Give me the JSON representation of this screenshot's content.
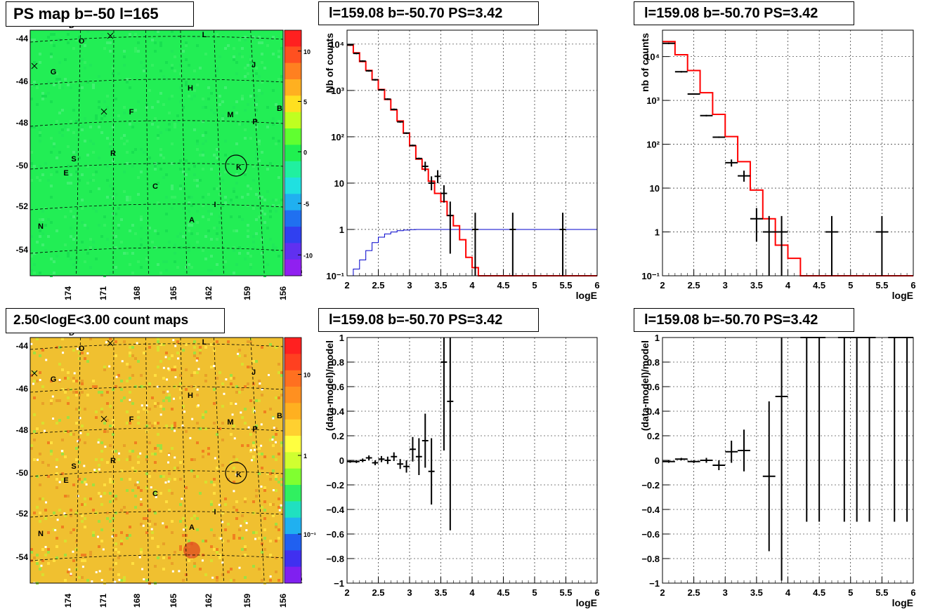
{
  "titles": {
    "map_top": "PS map b=-50 l=165",
    "map_bottom": "2.50<logE<3.00 count maps",
    "spec1": "l=159.08 b=-50.70 PS=3.42",
    "spec2": "l=159.08 b=-50.70 PS=3.42",
    "res1": "l=159.08 b=-50.70 PS=3.42",
    "res2": "l=159.08 b=-50.70 PS=3.42"
  },
  "maps": {
    "lat_ticks": [
      "-44",
      "-46",
      "-48",
      "-50",
      "-52",
      "-54"
    ],
    "lon_ticks": [
      "174",
      "171",
      "168",
      "165",
      "162",
      "159",
      "156"
    ],
    "source_labels": [
      {
        "t": "Q"
      },
      {
        "t": "D"
      },
      {
        "t": "O"
      },
      {
        "t": "L"
      },
      {
        "t": "G"
      },
      {
        "t": "J"
      },
      {
        "t": "H"
      },
      {
        "t": "F"
      },
      {
        "t": "M"
      },
      {
        "t": "B"
      },
      {
        "t": "P"
      },
      {
        "t": "R"
      },
      {
        "t": "S"
      },
      {
        "t": "K"
      },
      {
        "t": "E"
      },
      {
        "t": "C"
      },
      {
        "t": "I"
      },
      {
        "t": "A"
      },
      {
        "t": "N"
      }
    ],
    "top_colorbar_ticks": [
      "10",
      "5",
      "0",
      "-5",
      "-10"
    ],
    "bottom_colorbar_ticks": [
      "10",
      "1",
      "10⁻¹"
    ],
    "colors": {
      "background_top": "#22ee55",
      "background_bottom": "#f0c030"
    }
  },
  "chart_data": [
    {
      "type": "line",
      "title": "l=159.08 b=-50.70 PS=3.42",
      "xlabel": "logE",
      "ylabel": "Nb of counts",
      "xlim": [
        2,
        6
      ],
      "ylim": [
        0.1,
        20000
      ],
      "yscale": "log",
      "x_ticks": [
        "2",
        "2.5",
        "3",
        "3.5",
        "4",
        "4.5",
        "5",
        "5.5",
        "6"
      ],
      "y_ticks": [
        "10⁻¹",
        "1",
        "10",
        "10²",
        "10³",
        "10⁴"
      ],
      "grid": true,
      "model_step": {
        "edges": [
          2.0,
          2.1,
          2.2,
          2.3,
          2.4,
          2.5,
          2.6,
          2.7,
          2.8,
          2.9,
          3.0,
          3.1,
          3.2,
          3.3,
          3.4,
          3.5,
          3.6,
          3.7,
          3.8,
          3.9,
          4.0,
          4.1,
          4.2,
          6.0
        ],
        "values": [
          9500,
          6500,
          4200,
          2700,
          1700,
          1050,
          640,
          380,
          220,
          120,
          64,
          33,
          20,
          11,
          6,
          4,
          2,
          1.2,
          0.6,
          0.25,
          0.15,
          0.1,
          0.1
        ]
      },
      "exposure_step": {
        "edges": [
          2.0,
          2.1,
          2.2,
          2.3,
          2.4,
          2.5,
          2.6,
          2.7,
          2.8,
          2.9,
          3.0,
          3.1,
          6.0
        ],
        "values": [
          0.1,
          0.14,
          0.22,
          0.35,
          0.52,
          0.68,
          0.8,
          0.88,
          0.94,
          0.97,
          0.99,
          1.0
        ]
      },
      "data_points": [
        {
          "x": 2.05,
          "y": 9600
        },
        {
          "x": 2.15,
          "y": 6300
        },
        {
          "x": 2.25,
          "y": 4300
        },
        {
          "x": 2.35,
          "y": 2650
        },
        {
          "x": 2.45,
          "y": 1700
        },
        {
          "x": 2.55,
          "y": 1030
        },
        {
          "x": 2.65,
          "y": 650
        },
        {
          "x": 2.75,
          "y": 390
        },
        {
          "x": 2.85,
          "y": 210
        },
        {
          "x": 2.95,
          "y": 120
        },
        {
          "x": 3.05,
          "y": 65
        },
        {
          "x": 3.15,
          "y": 34
        },
        {
          "x": 3.25,
          "y": 23,
          "ylo": 18,
          "yhi": 29
        },
        {
          "x": 3.35,
          "y": 10,
          "ylo": 7,
          "yhi": 14
        },
        {
          "x": 3.45,
          "y": 14,
          "ylo": 10,
          "yhi": 19
        },
        {
          "x": 3.55,
          "y": 6,
          "ylo": 3.8,
          "yhi": 9
        },
        {
          "x": 3.65,
          "y": 2,
          "ylo": 0.3,
          "yhi": 4
        },
        {
          "x": 4.05,
          "y": 1,
          "ylo": 0.1,
          "yhi": 2.3
        },
        {
          "x": 4.65,
          "y": 1,
          "ylo": 0.1,
          "yhi": 2.3
        },
        {
          "x": 5.45,
          "y": 1,
          "ylo": 0.1,
          "yhi": 2.3
        }
      ],
      "colors": {
        "model": "#ff0000",
        "exposure": "#0000cc",
        "data": "#000000"
      }
    },
    {
      "type": "line",
      "title": "l=159.08 b=-50.70 PS=3.42",
      "xlabel": "logE",
      "ylabel": "nb of counts",
      "xlim": [
        2,
        6
      ],
      "ylim": [
        0.1,
        40000
      ],
      "yscale": "log",
      "x_ticks": [
        "2",
        "2.5",
        "3",
        "3.5",
        "4",
        "4.5",
        "5",
        "5.5",
        "6"
      ],
      "y_ticks": [
        "10⁻¹",
        "1",
        "10",
        "10²",
        "10³",
        "10⁴"
      ],
      "grid": true,
      "model_step": {
        "edges": [
          2.0,
          2.2,
          2.4,
          2.6,
          2.8,
          3.0,
          3.2,
          3.4,
          3.6,
          3.8,
          4.0,
          4.2,
          6.0
        ],
        "values": [
          22000,
          11000,
          4800,
          1500,
          480,
          150,
          40,
          9,
          2,
          0.5,
          0.25,
          0.1
        ]
      },
      "data_points": [
        {
          "x": 2.1,
          "y": 20000
        },
        {
          "x": 2.3,
          "y": 4500
        },
        {
          "x": 2.5,
          "y": 1400
        },
        {
          "x": 2.7,
          "y": 450
        },
        {
          "x": 2.9,
          "y": 145
        },
        {
          "x": 3.1,
          "y": 38,
          "ylo": 31,
          "yhi": 45
        },
        {
          "x": 3.3,
          "y": 19,
          "ylo": 14,
          "yhi": 25
        },
        {
          "x": 3.5,
          "y": 2,
          "ylo": 0.6,
          "yhi": 3.5
        },
        {
          "x": 3.7,
          "y": 1,
          "ylo": 0.1,
          "yhi": 2.3
        },
        {
          "x": 3.9,
          "y": 1,
          "ylo": 0.1,
          "yhi": 2.3
        },
        {
          "x": 4.7,
          "y": 1,
          "ylo": 0.1,
          "yhi": 2.3
        },
        {
          "x": 5.5,
          "y": 1,
          "ylo": 0.1,
          "yhi": 2.3
        }
      ],
      "colors": {
        "model": "#ff0000",
        "data": "#000000"
      }
    },
    {
      "type": "scatter",
      "title": "l=159.08 b=-50.70 PS=3.42",
      "xlabel": "logE",
      "ylabel": "(data-model)/model",
      "xlim": [
        2,
        6
      ],
      "ylim": [
        -1,
        1
      ],
      "x_ticks": [
        "2",
        "2.5",
        "3",
        "3.5",
        "4",
        "4.5",
        "5",
        "5.5",
        "6"
      ],
      "y_ticks": [
        "−1",
        "−0.8",
        "−0.6",
        "−0.4",
        "−0.2",
        "0",
        "0.2",
        "0.4",
        "0.6",
        "0.8",
        "1"
      ],
      "grid": true,
      "data_points": [
        {
          "x": 2.05,
          "y": -0.01,
          "e": 0.01
        },
        {
          "x": 2.15,
          "y": -0.01,
          "e": 0.012
        },
        {
          "x": 2.25,
          "y": 0.0,
          "e": 0.015
        },
        {
          "x": 2.35,
          "y": 0.02,
          "e": 0.02
        },
        {
          "x": 2.45,
          "y": -0.02,
          "e": 0.02
        },
        {
          "x": 2.55,
          "y": 0.01,
          "e": 0.025
        },
        {
          "x": 2.65,
          "y": 0.0,
          "e": 0.03
        },
        {
          "x": 2.75,
          "y": 0.03,
          "e": 0.035
        },
        {
          "x": 2.85,
          "y": -0.03,
          "e": 0.04
        },
        {
          "x": 2.95,
          "y": -0.05,
          "e": 0.05
        },
        {
          "x": 3.05,
          "y": 0.09,
          "e": 0.1
        },
        {
          "x": 3.15,
          "y": 0.03,
          "e": 0.15
        },
        {
          "x": 3.25,
          "y": 0.16,
          "e": 0.22
        },
        {
          "x": 3.35,
          "y": -0.09,
          "e": 0.27
        },
        {
          "x": 3.55,
          "y": 0.8,
          "e": 0.72
        },
        {
          "x": 3.65,
          "y": 0.48,
          "e": 1.05
        }
      ],
      "colors": {
        "data": "#000000"
      }
    },
    {
      "type": "scatter",
      "title": "l=159.08 b=-50.70 PS=3.42",
      "xlabel": "logE",
      "ylabel": "(data-model)/model",
      "xlim": [
        2,
        6
      ],
      "ylim": [
        -1,
        1
      ],
      "x_ticks": [
        "2",
        "2.5",
        "3",
        "3.5",
        "4",
        "4.5",
        "5",
        "5.5",
        "6"
      ],
      "y_ticks": [
        "−1",
        "−0.8",
        "−0.6",
        "−0.4",
        "−0.2",
        "0",
        "0.2",
        "0.4",
        "0.6",
        "0.8",
        "1"
      ],
      "grid": true,
      "data_points": [
        {
          "x": 2.1,
          "y": -0.01,
          "e": 0.01
        },
        {
          "x": 2.3,
          "y": 0.01,
          "e": 0.01
        },
        {
          "x": 2.5,
          "y": -0.01,
          "e": 0.012
        },
        {
          "x": 2.7,
          "y": 0.0,
          "e": 0.02
        },
        {
          "x": 2.9,
          "y": -0.04,
          "e": 0.04
        },
        {
          "x": 3.1,
          "y": 0.07,
          "e": 0.09
        },
        {
          "x": 3.3,
          "y": 0.08,
          "e": 0.17
        },
        {
          "x": 3.7,
          "y": -0.13,
          "e": 0.61
        },
        {
          "x": 3.9,
          "y": 0.52,
          "e": 1.5
        },
        {
          "x": 4.3,
          "y": 1.5,
          "e": 2
        },
        {
          "x": 4.5,
          "y": 1.5,
          "e": 2
        },
        {
          "x": 4.9,
          "y": 1.5,
          "e": 2
        },
        {
          "x": 5.1,
          "y": 1.5,
          "e": 2
        },
        {
          "x": 5.3,
          "y": 1.5,
          "e": 2
        },
        {
          "x": 5.7,
          "y": 1.5,
          "e": 2
        },
        {
          "x": 5.9,
          "y": 1.5,
          "e": 2
        }
      ],
      "colors": {
        "data": "#000000"
      }
    }
  ]
}
